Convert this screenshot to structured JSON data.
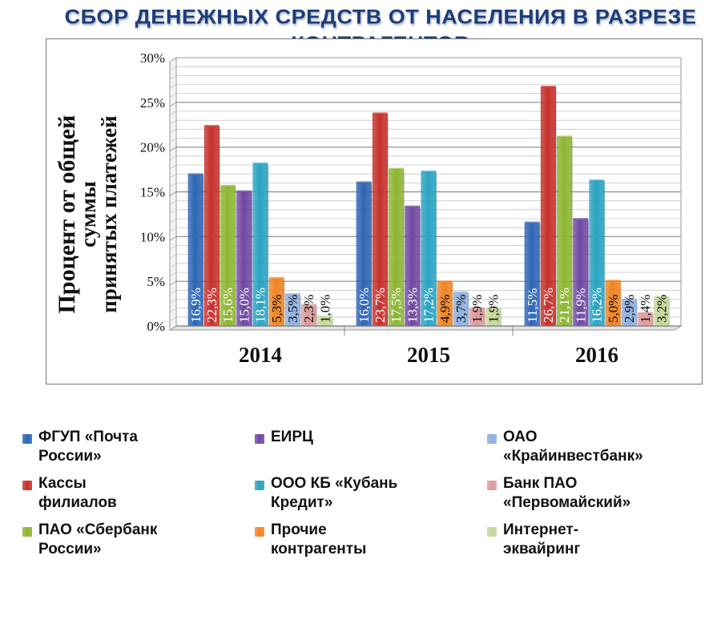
{
  "chart_data": {
    "type": "bar",
    "title": "СБОР ДЕНЕЖНЫХ СРЕДСТВ ОТ НАСЕЛЕНИЯ  В РАЗРЕЗЕ КОНТРАГЕНТОВ",
    "ylabel_lines": [
      "Процент от общей",
      "суммы",
      "принятых платежей"
    ],
    "xlabel": "",
    "categories": [
      "2014",
      "2015",
      "2016"
    ],
    "ylim": [
      0,
      30
    ],
    "yticks": [
      0,
      5,
      10,
      15,
      20,
      25,
      30
    ],
    "ytick_labels": [
      "0%",
      "5%",
      "10%",
      "15%",
      "20%",
      "25%",
      "30%"
    ],
    "grid": true,
    "legend_position": "bottom",
    "series": [
      {
        "name": "ФГУП «Почта России»",
        "legend_text": "ФГУП «Почта\nРоссии»",
        "color": "#2e66b5",
        "values": [
          16.9,
          16.0,
          11.5
        ],
        "labels": [
          "16,9%",
          "16,0%",
          "11,5%"
        ]
      },
      {
        "name": "Кассы филиалов",
        "legend_text": "Кассы\nфилиалов",
        "color": "#c6312c",
        "values": [
          22.3,
          23.7,
          26.7
        ],
        "labels": [
          "22,3%",
          "23,7%",
          "26,7%"
        ]
      },
      {
        "name": "ПАО «Сбербанк России»",
        "legend_text": "ПАО «Сбербанк\nРоссии»",
        "color": "#8db532",
        "values": [
          15.6,
          17.5,
          21.1
        ],
        "labels": [
          "15,6%",
          "17,5%",
          "21,1%"
        ]
      },
      {
        "name": "ЕИРЦ",
        "legend_text": "ЕИРЦ",
        "color": "#7049a3",
        "values": [
          15.0,
          13.3,
          11.9
        ],
        "labels": [
          "15,0%",
          "13,3%",
          "11,9%"
        ]
      },
      {
        "name": "ООО КБ «Кубань Кредит»",
        "legend_text": "ООО КБ «Кубань\nКредит»",
        "color": "#2aa3c2",
        "values": [
          18.1,
          17.2,
          16.2
        ],
        "labels": [
          "18,1%",
          "17,2%",
          "16,2%"
        ]
      },
      {
        "name": "Прочие контрагенты",
        "legend_text": "Прочие\nконтрагенты",
        "color": "#ef8424",
        "values": [
          5.3,
          4.9,
          5.0
        ],
        "labels": [
          "5,3%",
          "4,9%",
          "5,0%"
        ]
      },
      {
        "name": "ОАО «Крайинвестбанк»",
        "legend_text": "ОАО\n«Крайинвестбанк»",
        "color": "#8eb0de",
        "values": [
          3.5,
          3.7,
          2.9
        ],
        "labels": [
          "3,5%",
          "3,7%",
          "2,9%"
        ]
      },
      {
        "name": "Банк ПАО «Первомайский»",
        "legend_text": "Банк ПАО\n«Первомайский»",
        "color": "#dc9a9a",
        "values": [
          2.3,
          1.9,
          1.4
        ],
        "labels": [
          "2,3%",
          "1,9%",
          "1,4%"
        ]
      },
      {
        "name": "Интернет-эквайринг",
        "legend_text": "Интернет-\nэквайринг",
        "color": "#c3d89a",
        "values": [
          1.0,
          1.9,
          3.2
        ],
        "labels": [
          "1,0%",
          "1,9%",
          "3,2%"
        ]
      }
    ]
  }
}
